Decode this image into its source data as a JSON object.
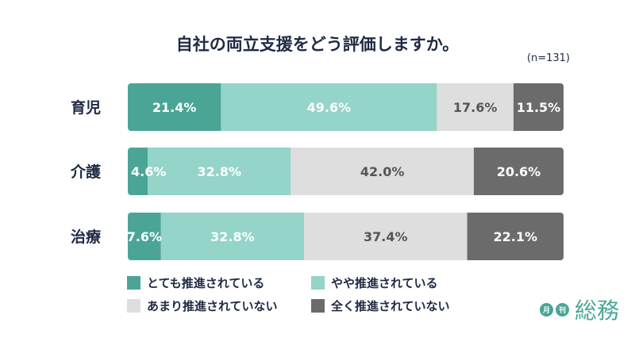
{
  "chart_data": {
    "type": "bar",
    "orientation": "horizontal",
    "stacked": true,
    "percent": true,
    "title": "自社の両立支援をどう評価しますか。",
    "note": "(n=131)",
    "categories": [
      "育児",
      "介護",
      "治療"
    ],
    "series": [
      {
        "name": "とても推進されている",
        "color": "#4aa596",
        "label_color": "#ffffff",
        "values": [
          21.4,
          4.6,
          7.6
        ]
      },
      {
        "name": "やや推進されている",
        "color": "#94d4c9",
        "label_color": "#ffffff",
        "values": [
          49.6,
          32.8,
          32.8
        ]
      },
      {
        "name": "あまり推進されていない",
        "color": "#dedede",
        "label_color": "#555555",
        "values": [
          17.6,
          42.0,
          37.4
        ]
      },
      {
        "name": "全く推進されていない",
        "color": "#6b6b6b",
        "label_color": "#ffffff",
        "values": [
          11.5,
          20.6,
          22.1
        ]
      }
    ],
    "data_labels": [
      [
        "21.4%",
        "49.6%",
        "17.6%",
        "11.5%"
      ],
      [
        "4.6%",
        "32.8%",
        "42.0%",
        "20.6%"
      ],
      [
        "7.6%",
        "32.8%",
        "37.4%",
        "22.1%"
      ]
    ],
    "legend_position": "bottom"
  },
  "logo": {
    "badge1": "月",
    "badge2": "刊",
    "text": "総務",
    "color": "#4aa596"
  }
}
